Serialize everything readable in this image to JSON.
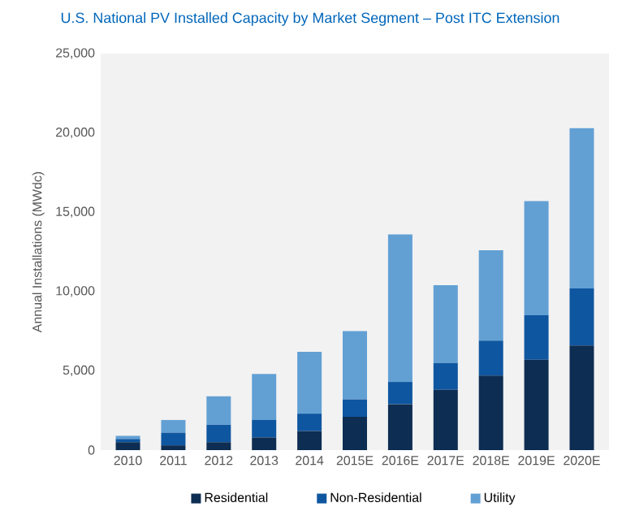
{
  "chart_data": {
    "type": "bar",
    "stacked": true,
    "title": "U.S. National PV Installed Capacity by Market Segment – Post ITC Extension",
    "ylabel": "Annual Installations (MWdc)",
    "categories": [
      "2010",
      "2011",
      "2012",
      "2013",
      "2014",
      "2015E",
      "2016E",
      "2017E",
      "2018E",
      "2019E",
      "2020E"
    ],
    "series": [
      {
        "name": "Residential",
        "color": "#0d2d52",
        "values": [
          500,
          300,
          500,
          800,
          1200,
          2100,
          2900,
          3800,
          4700,
          5700,
          6600
        ]
      },
      {
        "name": "Non-Residential",
        "color": "#0f56a0",
        "values": [
          200,
          800,
          1100,
          1100,
          1100,
          1100,
          1400,
          1700,
          2200,
          2800,
          3600
        ]
      },
      {
        "name": "Utility",
        "color": "#62a0d4",
        "values": [
          200,
          800,
          1800,
          2900,
          3900,
          4300,
          9300,
          4900,
          5700,
          7200,
          10100
        ]
      }
    ],
    "ylim": [
      0,
      25000
    ],
    "yticks": [
      {
        "value": 0,
        "label": "0"
      },
      {
        "value": 5000,
        "label": "5,000"
      },
      {
        "value": 10000,
        "label": "10,000"
      },
      {
        "value": 15000,
        "label": "15,000"
      },
      {
        "value": 20000,
        "label": "20,000"
      },
      {
        "value": 25000,
        "label": "25,000"
      }
    ],
    "legend": "bottom"
  }
}
